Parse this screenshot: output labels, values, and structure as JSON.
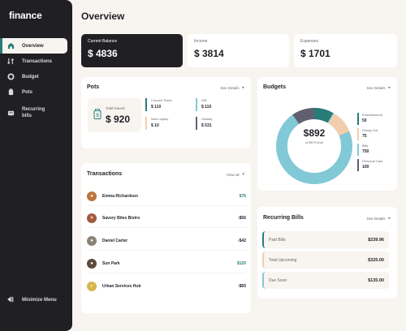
{
  "app": {
    "logo": "finance",
    "page_title": "Overview"
  },
  "sidebar": {
    "items": [
      {
        "label": "Overview",
        "icon": "home-icon"
      },
      {
        "label": "Transactions",
        "icon": "arrows-icon"
      },
      {
        "label": "Budget",
        "icon": "budget-icon"
      },
      {
        "label": "Pots",
        "icon": "pots-icon"
      },
      {
        "label": "Recurring bills",
        "icon": "bills-icon"
      }
    ],
    "minimize_label": "Minimize Menu"
  },
  "summary": {
    "balance": {
      "label": "Current Balance",
      "value": "$ 4836"
    },
    "income": {
      "label": "Income",
      "value": "$ 3814"
    },
    "expenses": {
      "label": "Expenses",
      "value": "$ 1701"
    }
  },
  "pots": {
    "title": "Pots",
    "see_details": "See Details",
    "total_label": "Total Saved",
    "total_value": "$ 920",
    "items": [
      {
        "name": "Concert Ticket",
        "value": "$ 110",
        "color": "#277c78"
      },
      {
        "name": "Gift",
        "value": "$ 110",
        "color": "#82c9d7"
      },
      {
        "name": "New Laptop",
        "value": "$ 10",
        "color": "#f2cdac"
      },
      {
        "name": "Holiday",
        "value": "$ 531",
        "color": "#626070"
      }
    ]
  },
  "transactions": {
    "title": "Transactions",
    "view_all": "View all",
    "items": [
      {
        "name": "Emma Richardson",
        "amount": "$76",
        "positive": true,
        "avatar_color": "#b9763b"
      },
      {
        "name": "Savory Bites Bistro",
        "amount": "-$56",
        "positive": false,
        "avatar_color": "#a2583e"
      },
      {
        "name": "Daniel Carter",
        "amount": "-$42",
        "positive": false,
        "avatar_color": "#8a8378"
      },
      {
        "name": "Sun Park",
        "amount": "$120",
        "positive": true,
        "avatar_color": "#5b4a3e"
      },
      {
        "name": "Urban Services Hub",
        "amount": "-$65",
        "positive": false,
        "avatar_color": "#d6b64f"
      }
    ]
  },
  "budgets": {
    "title": "Budgets",
    "see_details": "See Details",
    "center_value": "$892",
    "center_label": "of $975 limit",
    "items": [
      {
        "name": "Entertainment",
        "value": "50",
        "color": "#277c78"
      },
      {
        "name": "Dining Out",
        "value": "75",
        "color": "#f2cdac"
      },
      {
        "name": "Bills",
        "value": "750",
        "color": "#82c9d7"
      },
      {
        "name": "Personal Care",
        "value": "100",
        "color": "#626070"
      }
    ]
  },
  "recurring": {
    "title": "Recurring Bills",
    "see_details": "See Details",
    "items": [
      {
        "name": "Paid Bills",
        "value": "$239.96",
        "color": "#277c78"
      },
      {
        "name": "Total Upcoming",
        "value": "$325.00",
        "color": "#f2cdac"
      },
      {
        "name": "Due Soon",
        "value": "$135.00",
        "color": "#82c9d7"
      }
    ]
  }
}
